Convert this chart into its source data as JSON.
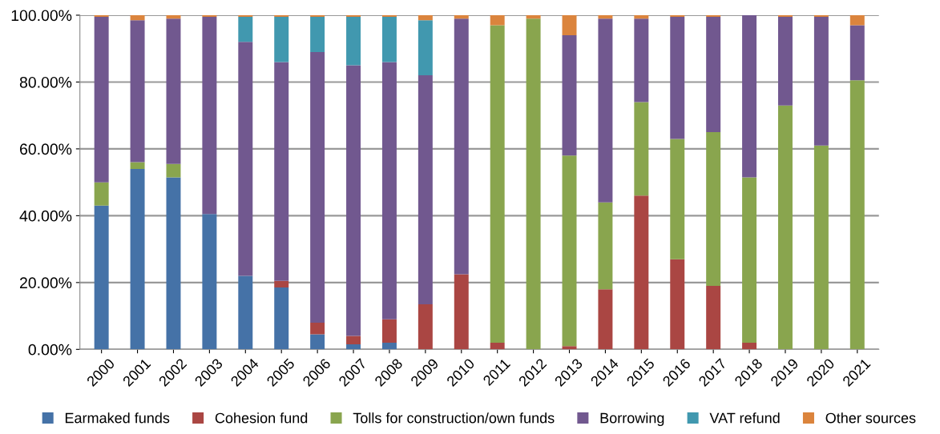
{
  "chart_data": {
    "type": "bar",
    "stacked": true,
    "categories": [
      "2000",
      "2001",
      "2002",
      "2003",
      "2004",
      "2005",
      "2006",
      "2007",
      "2008",
      "2009",
      "2010",
      "2011",
      "2012",
      "2013",
      "2014",
      "2015",
      "2016",
      "2017",
      "2018",
      "2019",
      "2020",
      "2021"
    ],
    "series": [
      {
        "name": "Earmaked funds",
        "color": "#4572a7",
        "values": [
          43,
          54,
          51.5,
          40.5,
          22,
          18.5,
          4.5,
          1.5,
          2,
          0,
          0,
          0,
          0,
          0,
          0,
          0,
          0,
          0,
          0,
          0,
          0,
          0
        ]
      },
      {
        "name": "Cohesion fund",
        "color": "#aa4643",
        "values": [
          0,
          0,
          0,
          0,
          0,
          2,
          3.5,
          2.5,
          7,
          13.5,
          22.5,
          2,
          0,
          1,
          18,
          46,
          27,
          19,
          2,
          0,
          0,
          0
        ]
      },
      {
        "name": "Tolls for construction/own funds",
        "color": "#89a54e",
        "values": [
          7,
          2,
          4,
          0,
          0,
          0,
          0,
          0,
          0,
          0,
          0,
          95,
          99,
          57,
          26,
          28,
          36,
          46,
          49.5,
          73,
          61,
          80.5
        ]
      },
      {
        "name": "Borrowing",
        "color": "#71588f",
        "values": [
          49.5,
          42.5,
          43.5,
          59,
          70,
          65.5,
          81,
          81,
          77,
          68.5,
          76.5,
          0,
          0,
          36,
          55,
          25,
          36.5,
          34.5,
          48.5,
          26.5,
          38.5,
          16.5
        ]
      },
      {
        "name": "VAT refund",
        "color": "#4198af",
        "values": [
          0,
          0,
          0,
          0,
          7.5,
          13.5,
          10.5,
          14.5,
          13.5,
          16.5,
          0,
          0,
          0,
          0,
          0,
          0,
          0,
          0,
          0,
          0,
          0,
          0
        ]
      },
      {
        "name": "Other sources",
        "color": "#db843d",
        "values": [
          0.5,
          1.5,
          1,
          0.5,
          0.5,
          0.5,
          0.5,
          0.5,
          0.5,
          1.5,
          1,
          3,
          1,
          6,
          1,
          1,
          0.5,
          0.5,
          0,
          0.5,
          0.5,
          3
        ]
      }
    ],
    "ylim": [
      0,
      100
    ],
    "yticks": [
      {
        "value": 0,
        "label": "0.00%"
      },
      {
        "value": 20,
        "label": "20.00%"
      },
      {
        "value": 40,
        "label": "40.00%"
      },
      {
        "value": 60,
        "label": "60.00%"
      },
      {
        "value": 80,
        "label": "80.00%"
      },
      {
        "value": 100,
        "label": "100.00%"
      }
    ],
    "grid": "y",
    "legend": "bottom"
  }
}
